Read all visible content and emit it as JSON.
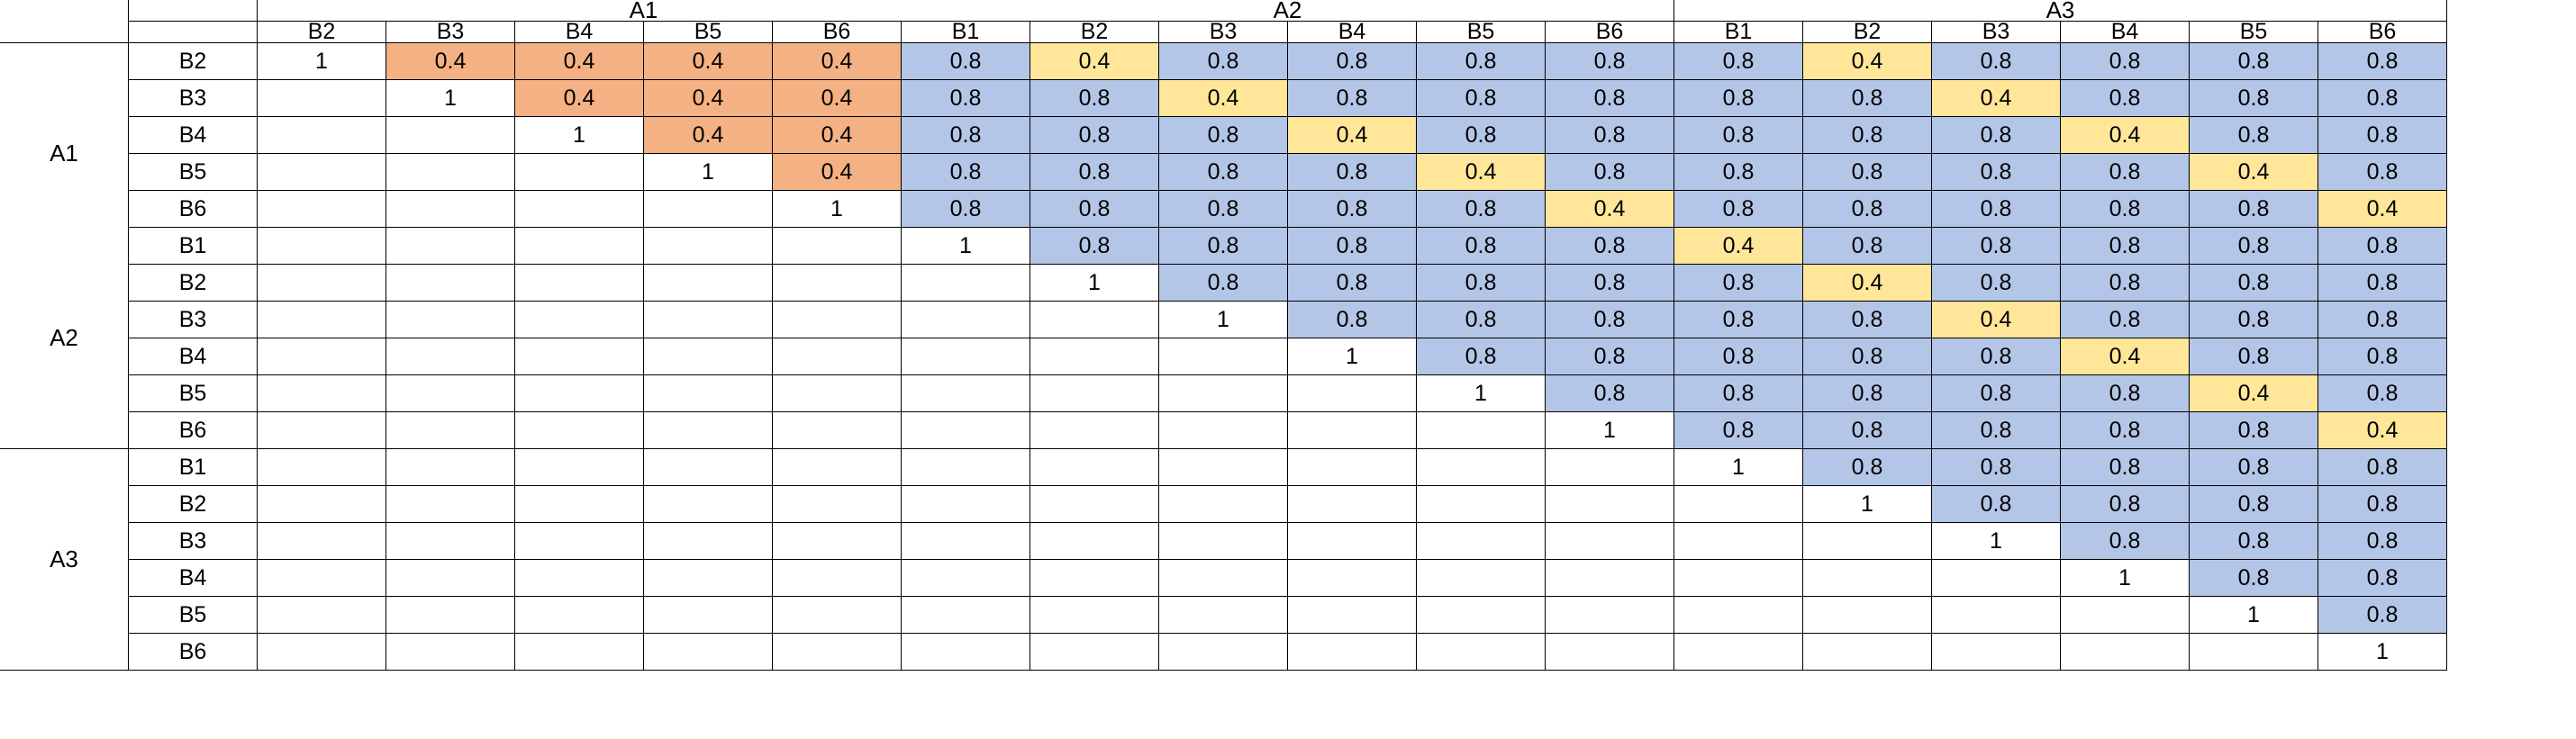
{
  "colors": {
    "orange": "#F4B183",
    "yellow": "#FFE699",
    "blue": "#B4C6E7",
    "white": "#FFFFFF",
    "grid": "#000000",
    "selection_green": "#217346"
  },
  "groups": [
    "A1",
    "A2",
    "A3"
  ],
  "subs": [
    "B1",
    "B2",
    "B3",
    "B4",
    "B5",
    "B6"
  ],
  "legend_values": {
    "diagonal": "1",
    "same_group": "0.4",
    "matching_sub": "0.4",
    "other": "0.8"
  }
}
